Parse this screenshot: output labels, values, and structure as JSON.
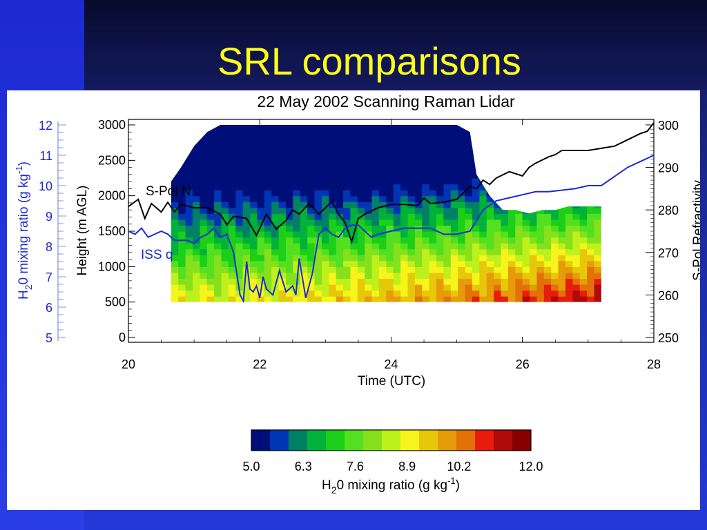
{
  "slide": {
    "title": "SRL comparisons"
  },
  "colors": {
    "background_top": "#0d1240",
    "background_bottom": "#2338d8",
    "title": "#ffff1a",
    "iss_q": "#1a2ad6",
    "spol_n": "#000000",
    "colorbar": [
      "#000e7a",
      "#0035b4",
      "#008066",
      "#00b13c",
      "#1ccf18",
      "#52e020",
      "#86e01c",
      "#bef01c",
      "#f6f41a",
      "#e6c80a",
      "#e69c08",
      "#e27208",
      "#e81c0a",
      "#b00a08",
      "#8a0000"
    ]
  },
  "chart_data": {
    "type": "heatmap",
    "title": "22 May 2002 Scanning Raman Lidar",
    "xlabel": "Time (UTC)",
    "xlim": [
      20,
      28
    ],
    "xticks": [
      "20",
      "22",
      "24",
      "26",
      "28"
    ],
    "y_left_outer": {
      "label_prefix": "H",
      "label_sub": "2",
      "label_mid": "0 mixing ratio (g kg",
      "label_sup": "-1",
      "label_end": ")",
      "range": [
        5,
        12
      ],
      "ticks": [
        "5",
        "6",
        "7",
        "8",
        "9",
        "10",
        "11",
        "12"
      ]
    },
    "y_left": {
      "label": "Height (m AGL)",
      "range": [
        0,
        3000
      ],
      "ticks": [
        "0",
        "500",
        "1000",
        "1500",
        "2000",
        "2500",
        "3000"
      ]
    },
    "y_right": {
      "label": "S-Pol Refractivity",
      "range": [
        250,
        300
      ],
      "ticks": [
        "250",
        "260",
        "270",
        "280",
        "290",
        "300"
      ]
    },
    "annotations": [
      "S-Pol N",
      "ISS q"
    ],
    "series": [
      {
        "name": "S-Pol N",
        "axis": "y_right",
        "x": [
          20.0,
          20.15,
          20.25,
          20.35,
          20.5,
          20.6,
          20.7,
          20.8,
          21.0,
          21.2,
          21.4,
          21.5,
          21.6,
          21.8,
          21.95,
          22.1,
          22.25,
          22.4,
          22.5,
          22.6,
          22.75,
          22.9,
          23.0,
          23.1,
          23.2,
          23.3,
          23.4,
          23.5,
          23.6,
          23.8,
          24.0,
          24.2,
          24.4,
          24.5,
          24.6,
          24.8,
          25.0,
          25.2,
          25.3,
          25.4,
          25.5,
          25.6,
          25.8,
          26.0,
          26.1,
          26.2,
          26.4,
          26.5,
          26.6,
          26.8,
          27.0,
          27.2,
          27.4,
          27.6,
          27.8,
          27.9,
          28.0
        ],
        "values": [
          280.8,
          282.5,
          278.0,
          281.5,
          279.5,
          281.8,
          279.5,
          281.3,
          280.5,
          280.5,
          279.0,
          276.5,
          278.5,
          278.0,
          274.0,
          279.0,
          275.5,
          277.5,
          280.0,
          279.0,
          281.5,
          279.0,
          280.5,
          282.0,
          279.0,
          277.0,
          272.5,
          278.0,
          279.0,
          280.5,
          281.3,
          281.3,
          281.0,
          282.8,
          281.5,
          281.8,
          282.5,
          285.5,
          285.0,
          287.0,
          286.0,
          287.5,
          289.0,
          288.0,
          290.0,
          291.0,
          292.5,
          293.0,
          294.0,
          294.0,
          294.0,
          294.5,
          295.0,
          296.5,
          298.0,
          298.5,
          300.5
        ]
      },
      {
        "name": "ISS q",
        "axis": "y_left_outer",
        "x": [
          20.0,
          20.1,
          20.2,
          20.3,
          20.4,
          20.5,
          20.6,
          20.7,
          20.8,
          20.9,
          21.0,
          21.1,
          21.2,
          21.3,
          21.4,
          21.5,
          21.6,
          21.7,
          21.75,
          21.8,
          21.85,
          21.9,
          21.95,
          22.0,
          22.05,
          22.1,
          22.2,
          22.3,
          22.4,
          22.5,
          22.55,
          22.6,
          22.7,
          22.8,
          22.9,
          23.0,
          23.1,
          23.2,
          23.3,
          23.4,
          23.5,
          23.6,
          23.7,
          23.8,
          24.0,
          24.2,
          24.4,
          24.6,
          24.8,
          25.0,
          25.2,
          25.4,
          25.6,
          25.8,
          26.0,
          26.2,
          26.4,
          26.6,
          26.8,
          27.0,
          27.2,
          27.4,
          27.6,
          27.8,
          28.0
        ],
        "values": [
          8.5,
          8.4,
          8.6,
          8.3,
          8.4,
          8.5,
          8.4,
          8.2,
          8.2,
          8.2,
          8.1,
          8.3,
          8.4,
          8.6,
          8.3,
          8.4,
          7.8,
          6.4,
          6.2,
          7.5,
          6.6,
          6.5,
          6.7,
          6.3,
          7.0,
          6.6,
          6.4,
          7.2,
          6.5,
          6.7,
          6.4,
          7.6,
          6.3,
          7.1,
          8.4,
          8.6,
          8.4,
          8.3,
          8.6,
          8.7,
          8.7,
          8.5,
          8.3,
          8.4,
          8.5,
          8.6,
          8.6,
          8.6,
          8.4,
          8.4,
          8.5,
          9.2,
          9.5,
          9.6,
          9.7,
          9.8,
          9.8,
          9.85,
          9.9,
          10.0,
          10.0,
          10.3,
          10.6,
          10.8,
          11.0
        ]
      }
    ],
    "heatmap": {
      "x_range": [
        20.65,
        27.2
      ],
      "height_bottom": 500,
      "top_height": {
        "x": [
          20.65,
          20.8,
          21.0,
          21.2,
          21.4,
          21.6,
          21.8,
          22.0,
          22.2,
          22.4,
          22.6,
          22.8,
          23.0,
          23.2,
          23.4,
          23.6,
          23.8,
          24.0,
          24.2,
          24.4,
          24.6,
          24.8,
          25.0,
          25.2,
          25.3,
          25.5,
          25.7,
          25.9,
          26.1,
          26.3,
          26.5,
          26.7,
          26.9,
          27.2
        ],
        "values": [
          2200,
          2400,
          2700,
          2900,
          3000,
          3000,
          3000,
          3000,
          3000,
          3000,
          3000,
          3000,
          3000,
          3000,
          3000,
          3000,
          3000,
          3000,
          3000,
          3000,
          3000,
          3000,
          3000,
          2900,
          2300,
          2000,
          1800,
          1800,
          1750,
          1800,
          1800,
          1850,
          1850,
          1850
        ]
      },
      "colorbar": {
        "label_prefix": "H",
        "label_sub": "2",
        "label_mid": "0 mixing ratio (g kg",
        "label_sup": "-1",
        "label_end": ")",
        "range": [
          5.0,
          12.0
        ],
        "ticks": [
          "5.0",
          "6.3",
          "7.6",
          "8.9",
          "10.2",
          "12.0"
        ]
      }
    }
  }
}
